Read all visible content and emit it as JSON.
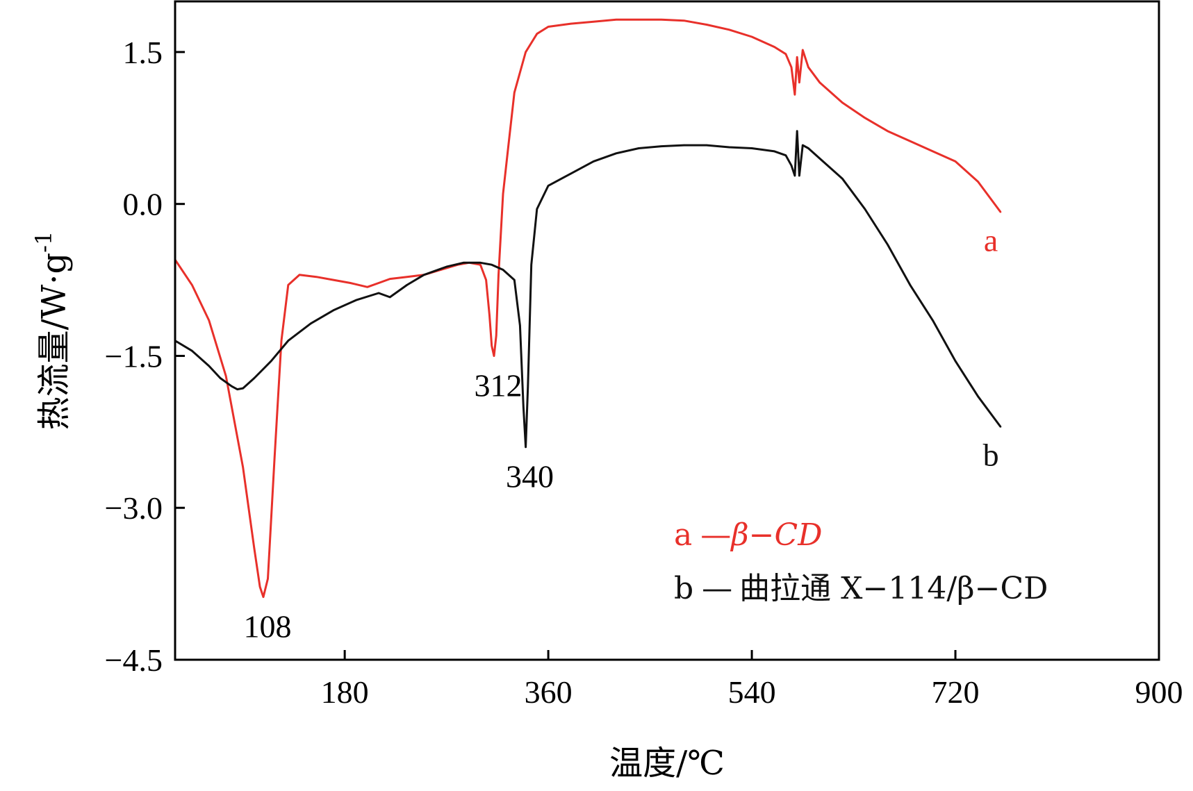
{
  "chart_data": {
    "type": "line",
    "xlabel": "温度/℃",
    "ylabel": "热流量/W·g",
    "ylabel_sup": "-1",
    "xlim": [
      30,
      900
    ],
    "ylim": [
      -4.5,
      2.0
    ],
    "xticks": [
      180,
      360,
      540,
      720,
      900
    ],
    "xtick_labels": [
      "180",
      "360",
      "540",
      "720",
      "900"
    ],
    "yticks": [
      1.5,
      0.0,
      -1.5,
      -3.0,
      -4.5
    ],
    "ytick_labels": [
      "1.5",
      "0.0",
      "−1.5",
      "−3.0",
      "−4.5"
    ],
    "grid": false,
    "legend_position": "bottom-right",
    "colors": {
      "a": "#e8302a",
      "b": "#111111"
    },
    "series": [
      {
        "id": "a",
        "name": "β-CD",
        "legend_label": "a",
        "legend_dash": "—",
        "legend_text": "β−CD",
        "end_label": "a",
        "x": [
          30,
          45,
          60,
          75,
          90,
          100,
          105,
          108,
          112,
          118,
          124,
          130,
          140,
          155,
          170,
          185,
          200,
          210,
          220,
          235,
          250,
          265,
          280,
          290,
          300,
          305,
          308,
          310,
          312,
          314,
          316,
          320,
          325,
          330,
          340,
          350,
          360,
          380,
          400,
          420,
          440,
          460,
          480,
          500,
          520,
          540,
          560,
          570,
          575,
          578,
          580,
          582,
          585,
          590,
          600,
          620,
          640,
          660,
          680,
          700,
          720,
          740,
          760
        ],
        "y": [
          -0.55,
          -0.8,
          -1.15,
          -1.7,
          -2.6,
          -3.4,
          -3.78,
          -3.88,
          -3.7,
          -2.5,
          -1.35,
          -0.8,
          -0.7,
          -0.72,
          -0.75,
          -0.78,
          -0.82,
          -0.78,
          -0.74,
          -0.72,
          -0.7,
          -0.65,
          -0.6,
          -0.58,
          -0.6,
          -0.75,
          -1.1,
          -1.4,
          -1.5,
          -1.3,
          -0.7,
          0.1,
          0.6,
          1.1,
          1.5,
          1.68,
          1.75,
          1.78,
          1.8,
          1.82,
          1.82,
          1.82,
          1.81,
          1.77,
          1.72,
          1.65,
          1.55,
          1.48,
          1.35,
          1.08,
          1.45,
          1.2,
          1.52,
          1.35,
          1.2,
          1.0,
          0.85,
          0.72,
          0.62,
          0.52,
          0.42,
          0.22,
          -0.08
        ]
      },
      {
        "id": "b",
        "name": "曲拉通 X-114/β-CD",
        "legend_label": "b",
        "legend_dash": "—",
        "legend_text": "曲拉通 X−114/β−CD",
        "end_label": "b",
        "x": [
          30,
          45,
          60,
          70,
          80,
          85,
          90,
          100,
          115,
          130,
          150,
          170,
          190,
          210,
          220,
          235,
          250,
          270,
          285,
          300,
          310,
          320,
          330,
          335,
          338,
          340,
          342,
          345,
          350,
          360,
          380,
          400,
          420,
          440,
          460,
          480,
          500,
          520,
          540,
          560,
          570,
          575,
          578,
          580,
          582,
          585,
          590,
          600,
          620,
          640,
          660,
          680,
          700,
          720,
          740,
          760
        ],
        "y": [
          -1.35,
          -1.45,
          -1.6,
          -1.72,
          -1.8,
          -1.83,
          -1.82,
          -1.72,
          -1.55,
          -1.35,
          -1.18,
          -1.05,
          -0.95,
          -0.88,
          -0.92,
          -0.8,
          -0.7,
          -0.62,
          -0.58,
          -0.58,
          -0.6,
          -0.65,
          -0.75,
          -1.2,
          -2.0,
          -2.4,
          -1.8,
          -0.6,
          -0.05,
          0.18,
          0.3,
          0.42,
          0.5,
          0.55,
          0.57,
          0.58,
          0.58,
          0.56,
          0.55,
          0.52,
          0.48,
          0.38,
          0.28,
          0.72,
          0.28,
          0.58,
          0.55,
          0.45,
          0.25,
          -0.05,
          -0.4,
          -0.8,
          -1.15,
          -1.55,
          -1.9,
          -2.2
        ]
      }
    ],
    "annotations": [
      {
        "text": "108",
        "x": 108,
        "y": -3.88,
        "series": "a"
      },
      {
        "text": "312",
        "x": 312,
        "y": -1.5,
        "series": "a"
      },
      {
        "text": "340",
        "x": 340,
        "y": -2.4,
        "series": "b"
      }
    ]
  }
}
